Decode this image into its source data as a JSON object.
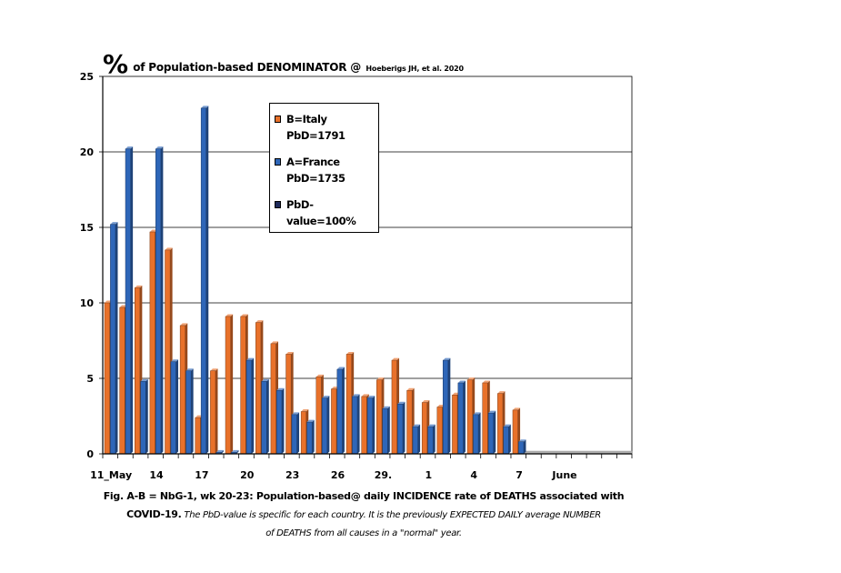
{
  "title": {
    "percent_sign": "%",
    "main": "of Population-based DENOMINATOR @",
    "reference": "Hoeberigs JH, et al. 2020"
  },
  "legend": [
    {
      "line1": "B=Italy",
      "line2": "PbD=1791",
      "color": "#e8712a"
    },
    {
      "line1": "A=France",
      "line2": "PbD=1735",
      "color": "#2e66b8"
    },
    {
      "line1": "PbD-",
      "line2": "value=100%",
      "color": "#1e2a5a"
    }
  ],
  "caption": {
    "line1": "Fig. A-B = NbG-1, wk 20-23: Population-based@ daily INCIDENCE rate of DEATHS associated with",
    "line2_bold": "COVID-19.",
    "line2_italic": " The PbD-value is specific for each country. It is the  previously EXPECTED DAILY average NUMBER",
    "line3": "of DEATHS from all causes in a  \"normal\" year."
  },
  "chart_data": {
    "type": "bar",
    "ylim": [
      0,
      25
    ],
    "yticks": [
      0,
      5,
      10,
      15,
      20,
      25
    ],
    "grid": true,
    "legend_position": "top-center",
    "slot_count": 35,
    "day_slots": [
      0,
      1,
      2,
      3,
      4,
      5,
      6,
      7,
      8,
      9,
      10,
      11,
      12,
      13,
      14,
      15,
      16,
      17,
      18,
      19,
      20,
      21,
      22,
      23,
      24,
      25,
      26,
      27
    ],
    "x_tick_labels": [
      {
        "label": "11_May",
        "slot": 0
      },
      {
        "label": "14",
        "slot": 3
      },
      {
        "label": "17",
        "slot": 6
      },
      {
        "label": "20",
        "slot": 9
      },
      {
        "label": "23",
        "slot": 12
      },
      {
        "label": "26",
        "slot": 15
      },
      {
        "label": "29.",
        "slot": 18
      },
      {
        "label": "1",
        "slot": 21
      },
      {
        "label": "4",
        "slot": 24
      },
      {
        "label": "7",
        "slot": 27
      },
      {
        "label": "June",
        "slot": 30
      }
    ],
    "series": [
      {
        "key": "italy",
        "color": "#e8712a",
        "values": [
          10.0,
          9.7,
          11.0,
          14.7,
          13.5,
          8.5,
          2.4,
          5.5,
          9.1,
          9.1,
          8.7,
          7.3,
          6.6,
          2.8,
          5.1,
          4.3,
          6.6,
          3.8,
          4.9,
          6.2,
          4.2,
          3.4,
          3.1,
          3.9,
          4.9,
          4.7,
          4.0,
          2.9
        ]
      },
      {
        "key": "france",
        "color": "#2e66b8",
        "values": [
          15.2,
          20.2,
          4.8,
          20.2,
          6.1,
          5.5,
          22.9,
          0.1,
          0.1,
          6.2,
          4.8,
          4.2,
          2.6,
          2.1,
          3.7,
          5.6,
          3.8,
          3.7,
          3.0,
          3.3,
          1.8,
          1.8,
          6.2,
          4.7,
          2.6,
          2.7,
          1.8,
          0.8
        ]
      }
    ],
    "baseline_series": {
      "key": "pbd",
      "color": "#b0b0b0",
      "values": "0 (flat beyond last data day)"
    }
  }
}
